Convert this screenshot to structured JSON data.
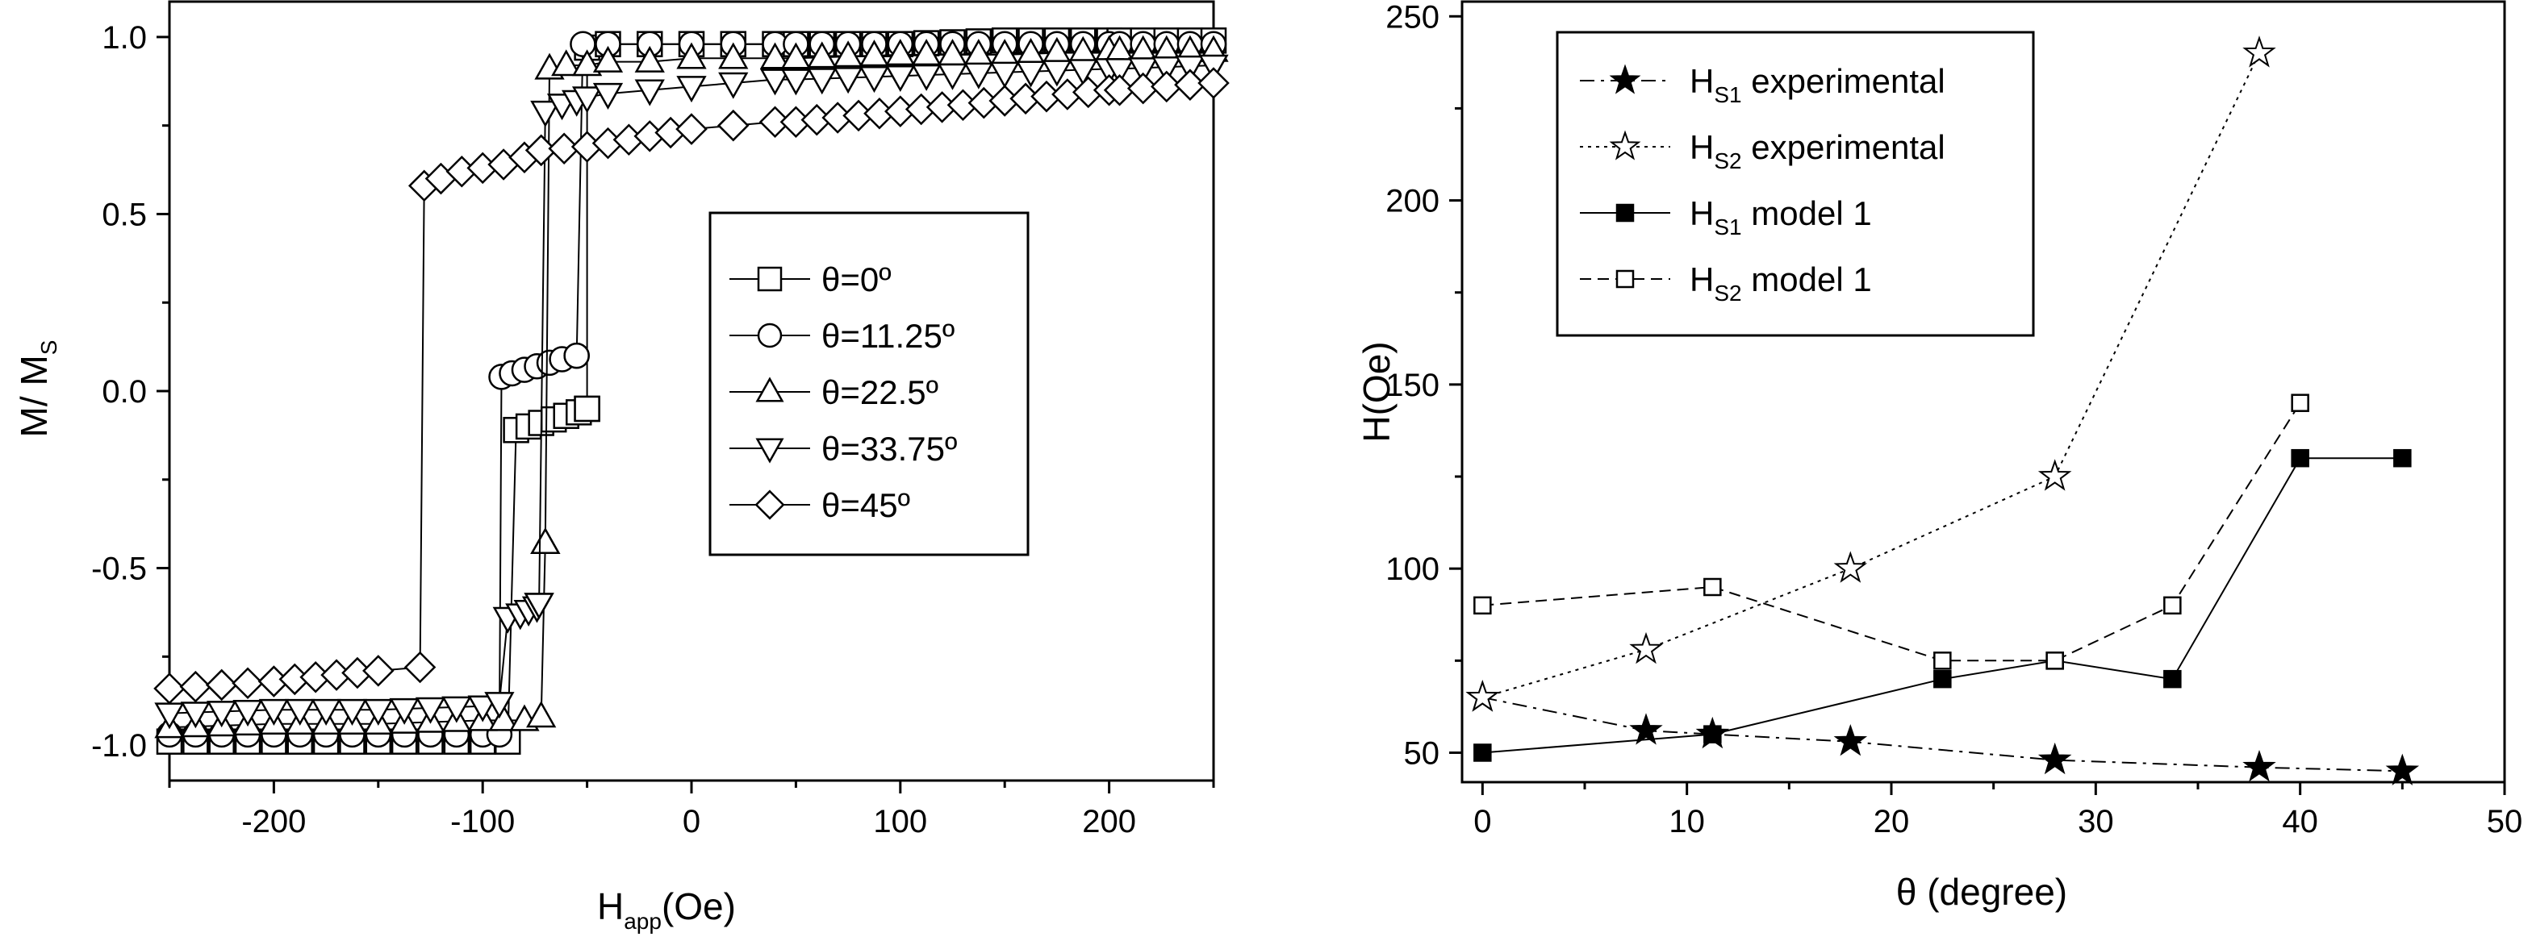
{
  "chart_data": [
    {
      "type": "line",
      "xlabel": "H",
      "xlabel_sub": "app",
      "xlabel_unit": "(Oe)",
      "ylabel": "M/ M",
      "ylabel_sub": "S",
      "xlim": [
        -250,
        250
      ],
      "ylim": [
        -1.1,
        1.1
      ],
      "xticks": [
        -200,
        -100,
        0,
        100,
        200
      ],
      "xtick_labels": [
        "-200",
        "-100",
        "0",
        "100",
        "200"
      ],
      "yticks": [
        -1.0,
        -0.5,
        0.0,
        0.5,
        1.0
      ],
      "ytick_labels": [
        "-1.0",
        "-0.5",
        "0.0",
        "0.5",
        "1.0"
      ],
      "legend_position": "center-right",
      "series": [
        {
          "name": "θ=0º",
          "marker": "square",
          "upper": [
            [
              -50,
              -0.05
            ],
            [
              -50,
              0.97
            ],
            [
              -40,
              0.98
            ],
            [
              -20,
              0.98
            ],
            [
              0,
              0.98
            ],
            [
              20,
              0.98
            ],
            [
              40,
              0.98
            ],
            [
              50,
              0.98
            ],
            [
              100,
              0.98
            ],
            [
              150,
              0.99
            ],
            [
              200,
              0.99
            ],
            [
              205,
              0.99
            ],
            [
              250,
              0.99
            ]
          ],
          "lower": [
            [
              -250,
              -0.99
            ],
            [
              -200,
              -0.99
            ],
            [
              -150,
              -0.99
            ],
            [
              -100,
              -0.99
            ],
            [
              -88,
              -0.99
            ],
            [
              -84,
              -0.11
            ],
            [
              -78,
              -0.1
            ],
            [
              -72,
              -0.09
            ],
            [
              -66,
              -0.08
            ],
            [
              -60,
              -0.07
            ],
            [
              -54,
              -0.06
            ],
            [
              -50,
              -0.05
            ]
          ]
        },
        {
          "name": "θ=11.25º",
          "marker": "circle",
          "upper": [
            [
              -55,
              0.1
            ],
            [
              -52,
              0.98
            ],
            [
              -40,
              0.98
            ],
            [
              -20,
              0.98
            ],
            [
              0,
              0.98
            ],
            [
              20,
              0.98
            ],
            [
              40,
              0.98
            ],
            [
              50,
              0.98
            ],
            [
              100,
              0.98
            ],
            [
              150,
              0.98
            ],
            [
              200,
              0.98
            ],
            [
              205,
              0.98
            ],
            [
              250,
              0.98
            ]
          ],
          "lower": [
            [
              -250,
              -0.97
            ],
            [
              -200,
              -0.97
            ],
            [
              -150,
              -0.97
            ],
            [
              -100,
              -0.97
            ],
            [
              -92,
              -0.97
            ],
            [
              -91,
              0.04
            ],
            [
              -86,
              0.05
            ],
            [
              -80,
              0.06
            ],
            [
              -74,
              0.07
            ],
            [
              -68,
              0.08
            ],
            [
              -62,
              0.09
            ],
            [
              -55,
              0.1
            ]
          ]
        },
        {
          "name": "θ=22.5º",
          "marker": "triangle-up",
          "upper": [
            [
              -70,
              -0.43
            ],
            [
              -68,
              0.91
            ],
            [
              -60,
              0.92
            ],
            [
              -50,
              0.92
            ],
            [
              -40,
              0.93
            ],
            [
              -20,
              0.93
            ],
            [
              0,
              0.94
            ],
            [
              20,
              0.94
            ],
            [
              40,
              0.94
            ],
            [
              50,
              0.94
            ],
            [
              100,
              0.95
            ],
            [
              150,
              0.95
            ],
            [
              200,
              0.96
            ],
            [
              205,
              0.96
            ],
            [
              250,
              0.96
            ]
          ],
          "lower": [
            [
              -250,
              -0.95
            ],
            [
              -200,
              -0.94
            ],
            [
              -150,
              -0.94
            ],
            [
              -100,
              -0.93
            ],
            [
              -90,
              -0.93
            ],
            [
              -80,
              -0.93
            ],
            [
              -72,
              -0.92
            ],
            [
              -70,
              -0.43
            ]
          ]
        },
        {
          "name": "θ=33.75º",
          "marker": "triangle-down",
          "upper": [
            [
              -73,
              -0.6
            ],
            [
              -70,
              0.79
            ],
            [
              -62,
              0.81
            ],
            [
              -55,
              0.82
            ],
            [
              -50,
              0.83
            ],
            [
              -40,
              0.84
            ],
            [
              -20,
              0.85
            ],
            [
              0,
              0.86
            ],
            [
              20,
              0.87
            ],
            [
              40,
              0.88
            ],
            [
              50,
              0.88
            ],
            [
              100,
              0.89
            ],
            [
              150,
              0.9
            ],
            [
              200,
              0.91
            ],
            [
              205,
              0.91
            ],
            [
              250,
              0.92
            ]
          ],
          "lower": [
            [
              -250,
              -0.91
            ],
            [
              -200,
              -0.9
            ],
            [
              -150,
              -0.9
            ],
            [
              -100,
              -0.89
            ],
            [
              -92,
              -0.88
            ],
            [
              -88,
              -0.64
            ],
            [
              -82,
              -0.63
            ],
            [
              -78,
              -0.62
            ],
            [
              -74,
              -0.61
            ],
            [
              -73,
              -0.6
            ]
          ]
        },
        {
          "name": "θ=45º",
          "marker": "diamond",
          "upper": [
            [
              -72,
              0.68
            ],
            [
              -50,
              0.69
            ],
            [
              -40,
              0.7
            ],
            [
              -30,
              0.71
            ],
            [
              -20,
              0.72
            ],
            [
              -10,
              0.73
            ],
            [
              0,
              0.74
            ],
            [
              20,
              0.75
            ],
            [
              40,
              0.76
            ],
            [
              50,
              0.76
            ],
            [
              100,
              0.79
            ],
            [
              150,
              0.82
            ],
            [
              200,
              0.85
            ],
            [
              205,
              0.85
            ],
            [
              250,
              0.87
            ]
          ],
          "lower": [
            [
              -250,
              -0.84
            ],
            [
              -200,
              -0.82
            ],
            [
              -150,
              -0.79
            ],
            [
              -130,
              -0.78
            ],
            [
              -128,
              0.58
            ],
            [
              -120,
              0.6
            ],
            [
              -110,
              0.62
            ],
            [
              -100,
              0.63
            ],
            [
              -90,
              0.64
            ],
            [
              -80,
              0.66
            ],
            [
              -72,
              0.68
            ]
          ]
        }
      ]
    },
    {
      "type": "line",
      "xlabel": "θ (degree)",
      "ylabel": "H(Oe)",
      "xlim": [
        -1,
        50
      ],
      "ylim": [
        42,
        254
      ],
      "xticks": [
        0,
        10,
        20,
        30,
        40,
        50
      ],
      "xtick_labels": [
        "0",
        "10",
        "20",
        "30",
        "40",
        "50"
      ],
      "yticks": [
        50,
        100,
        150,
        200,
        250
      ],
      "ytick_labels": [
        "50",
        "100",
        "150",
        "200",
        "250"
      ],
      "legend_position": "top-left",
      "series": [
        {
          "name": "H",
          "sub": "S1",
          "suffix": "experimental",
          "marker": "star-filled",
          "dash": "18,8,4,8",
          "points": [
            [
              0,
              65
            ],
            [
              8,
              56
            ],
            [
              11.25,
              55
            ],
            [
              18,
              53
            ],
            [
              28,
              48
            ],
            [
              38,
              46
            ],
            [
              45,
              45
            ]
          ]
        },
        {
          "name": "H",
          "sub": "S2",
          "suffix": "experimental",
          "marker": "star-open",
          "dash": "4,6",
          "points": [
            [
              0,
              65
            ],
            [
              8,
              78
            ],
            [
              18,
              100
            ],
            [
              28,
              125
            ],
            [
              38,
              240
            ]
          ]
        },
        {
          "name": "H",
          "sub": "S1",
          "suffix": "model 1",
          "marker": "square-filled",
          "dash": "",
          "points": [
            [
              0,
              50
            ],
            [
              11.25,
              55
            ],
            [
              22.5,
              70
            ],
            [
              28,
              75
            ],
            [
              33.75,
              70
            ],
            [
              40,
              130
            ],
            [
              45,
              130
            ]
          ]
        },
        {
          "name": "H",
          "sub": "S2",
          "suffix": "model 1",
          "marker": "square-open",
          "dash": "14,8",
          "points": [
            [
              0,
              90
            ],
            [
              11.25,
              95
            ],
            [
              22.5,
              75
            ],
            [
              28,
              75
            ],
            [
              33.75,
              90
            ],
            [
              40,
              145
            ]
          ]
        }
      ]
    }
  ]
}
